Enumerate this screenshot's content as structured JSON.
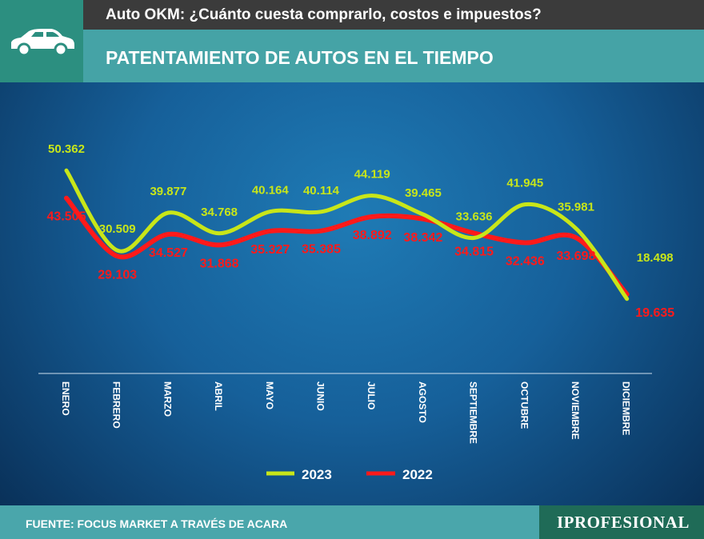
{
  "header": {
    "subtitle": "Auto OKM: ¿Cuánto cuesta comprarlo, costos e impuestos?",
    "title": "PATENTAMIENTO DE AUTOS EN EL TIEMPO",
    "icon": "car-icon"
  },
  "footer": {
    "source": "FUENTE: FOCUS MARKET A TRAVÉS DE ACARA",
    "logo": "IPROFESIONAL"
  },
  "colors": {
    "s2023": "#c8e619",
    "s2022": "#ff1a1a"
  },
  "chart_data": {
    "type": "line",
    "title": "PATENTAMIENTO DE AUTOS EN EL TIEMPO",
    "categories": [
      "ENERO",
      "FEBRERO",
      "MARZO",
      "ABRIL",
      "MAYO",
      "JUNIO",
      "JULIO",
      "AGOSTO",
      "SEPTIEMBRE",
      "OCTUBRE",
      "NOVIEMBRE",
      "DICIEMBRE"
    ],
    "series": [
      {
        "name": "2023",
        "values": [
          50362,
          30509,
          39877,
          34768,
          40164,
          40114,
          44119,
          39465,
          33636,
          41945,
          35981,
          18498
        ],
        "labels": [
          "50.362",
          "30.509",
          "39.877",
          "34.768",
          "40.164",
          "40.114",
          "44.119",
          "39.465",
          "33.636",
          "41.945",
          "35.981",
          "18.498"
        ]
      },
      {
        "name": "2022",
        "values": [
          43505,
          29103,
          34527,
          31868,
          35327,
          35385,
          38892,
          38342,
          34815,
          32436,
          33698,
          19635
        ],
        "labels": [
          "43.505",
          "29.103",
          "34.527",
          "31.868",
          "35.327",
          "35.385",
          "38.892",
          "38.342",
          "34.815",
          "32.436",
          "33.698",
          "19.635"
        ]
      }
    ],
    "ylim": [
      0,
      55000
    ],
    "legend": "bottom-center",
    "grid": false
  }
}
